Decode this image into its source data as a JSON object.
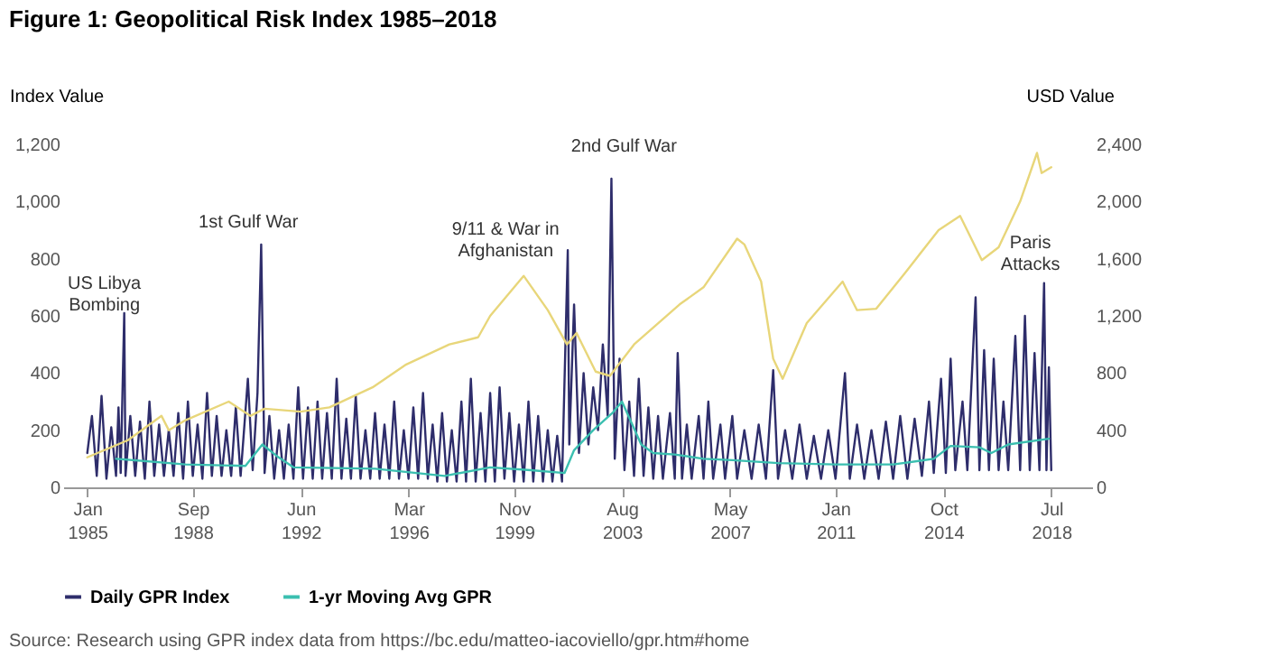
{
  "chart_data": {
    "type": "line",
    "title": "Figure 1: Geopolitical Risk Index 1985–2018",
    "ylabel": "Index Value",
    "y2label": "USD Value",
    "xlim": [
      "1984-03-01",
      "2019-12-01"
    ],
    "xticks": [
      {
        "value": "1985-01-01",
        "label": "Jan 1985"
      },
      {
        "value": "1988-09-01",
        "label": "Sep 1988"
      },
      {
        "value": "1992-06-01",
        "label": "Jun 1992"
      },
      {
        "value": "1996-03-01",
        "label": "Mar 1996"
      },
      {
        "value": "1999-11-01",
        "label": "Nov 1999"
      },
      {
        "value": "2003-08-01",
        "label": "Aug 2003"
      },
      {
        "value": "2007-05-01",
        "label": "May 2007"
      },
      {
        "value": "2011-01-01",
        "label": "Jan 2011"
      },
      {
        "value": "2014-10-01",
        "label": "Oct 2014"
      },
      {
        "value": "2018-07-01",
        "label": "Jul 2018"
      }
    ],
    "ylim": [
      0,
      1200
    ],
    "yticks": [
      0,
      200,
      400,
      600,
      800,
      {
        "value": 1000,
        "label": "1,000"
      },
      {
        "value": 1200,
        "label": "1,200"
      }
    ],
    "y2lim": [
      0,
      2400
    ],
    "y2ticks": [
      0,
      400,
      800,
      {
        "value": 1200,
        "label": "1,200"
      },
      {
        "value": 1600,
        "label": "1,600"
      },
      {
        "value": 2000,
        "label": "2,000"
      },
      {
        "value": 2400,
        "label": "2,400"
      }
    ],
    "grid": false,
    "legend": "bottom left",
    "marker": "none",
    "line_style": "solid",
    "series": [
      {
        "name": "Daily GPR Index",
        "color": "#2e2d6b",
        "x": [
          "1985-01",
          "1985-03",
          "1985-05",
          "1985-07",
          "1985-09",
          "1985-11",
          "1986-01",
          "1986-02",
          "1986-03",
          "1986-04-15",
          "1986-05",
          "1986-07",
          "1986-09",
          "1986-11",
          "1987-01",
          "1987-03",
          "1987-05",
          "1987-07",
          "1987-09",
          "1987-11",
          "1988-01",
          "1988-03",
          "1988-05",
          "1988-07",
          "1988-09",
          "1988-11",
          "1989-01",
          "1989-03",
          "1989-05",
          "1989-07",
          "1989-09",
          "1989-11",
          "1990-01",
          "1990-03",
          "1990-05",
          "1990-08",
          "1990-10",
          "1990-12",
          "1991-01-17",
          "1991-03",
          "1991-05",
          "1991-07",
          "1991-09",
          "1991-11",
          "1992-01",
          "1992-03",
          "1992-05",
          "1992-07",
          "1992-09",
          "1992-11",
          "1993-01",
          "1993-03",
          "1993-05",
          "1993-07",
          "1993-09",
          "1993-11",
          "1994-01",
          "1994-03",
          "1994-05",
          "1994-07",
          "1994-09",
          "1994-11",
          "1995-01",
          "1995-03",
          "1995-05",
          "1995-07",
          "1995-09",
          "1995-11",
          "1996-01",
          "1996-03",
          "1996-05",
          "1996-07",
          "1996-09",
          "1996-11",
          "1997-01",
          "1997-03",
          "1997-05",
          "1997-07",
          "1997-09",
          "1997-11",
          "1998-01",
          "1998-03",
          "1998-05",
          "1998-07",
          "1998-09",
          "1998-11",
          "1999-01",
          "1999-03",
          "1999-05",
          "1999-07",
          "1999-09",
          "1999-11",
          "2000-01",
          "2000-03",
          "2000-05",
          "2000-07",
          "2000-09",
          "2000-11",
          "2001-01",
          "2001-03",
          "2001-05",
          "2001-07",
          "2001-09-12",
          "2001-10",
          "2001-12",
          "2002-02",
          "2002-04",
          "2002-06",
          "2002-08",
          "2002-10",
          "2002-12",
          "2003-02",
          "2003-03-20",
          "2003-05",
          "2003-07",
          "2003-09",
          "2003-11",
          "2004-01",
          "2004-03",
          "2004-05",
          "2004-07",
          "2004-09",
          "2004-11",
          "2005-01",
          "2005-04",
          "2005-06",
          "2005-07-08",
          "2005-09",
          "2005-11",
          "2006-01",
          "2006-04",
          "2006-06",
          "2006-08",
          "2006-10",
          "2007-01",
          "2007-03",
          "2007-06",
          "2007-08",
          "2007-11",
          "2008-02",
          "2008-05",
          "2008-08",
          "2008-11",
          "2009-01",
          "2009-04",
          "2009-07",
          "2009-10",
          "2010-01",
          "2010-04",
          "2010-07",
          "2010-10",
          "2011-01",
          "2011-05",
          "2011-07",
          "2011-10",
          "2012-01",
          "2012-04",
          "2012-07",
          "2012-10",
          "2013-01",
          "2013-04",
          "2013-07",
          "2013-10",
          "2014-01",
          "2014-04",
          "2014-06",
          "2014-09",
          "2014-11",
          "2015-01",
          "2015-03",
          "2015-06",
          "2015-08",
          "2015-11-14",
          "2016-01",
          "2016-03",
          "2016-05",
          "2016-07",
          "2016-09",
          "2016-11",
          "2017-01",
          "2017-04",
          "2017-06",
          "2017-08",
          "2017-10",
          "2017-12",
          "2018-02",
          "2018-04",
          "2018-05",
          "2018-06",
          "2018-07"
        ],
        "values": [
          120,
          250,
          40,
          320,
          30,
          210,
          40,
          280,
          50,
          610,
          40,
          250,
          40,
          230,
          30,
          300,
          40,
          220,
          40,
          200,
          40,
          260,
          30,
          300,
          40,
          220,
          30,
          330,
          40,
          250,
          40,
          200,
          40,
          280,
          40,
          380,
          60,
          330,
          850,
          50,
          250,
          30,
          200,
          30,
          220,
          30,
          350,
          30,
          280,
          30,
          300,
          30,
          260,
          30,
          380,
          30,
          240,
          30,
          320,
          30,
          200,
          30,
          260,
          30,
          220,
          30,
          300,
          30,
          200,
          30,
          280,
          30,
          330,
          30,
          220,
          20,
          260,
          20,
          200,
          20,
          300,
          20,
          380,
          20,
          260,
          20,
          330,
          20,
          350,
          30,
          260,
          20,
          220,
          20,
          300,
          20,
          250,
          20,
          200,
          20,
          180,
          20,
          830,
          150,
          640,
          120,
          400,
          150,
          350,
          200,
          500,
          250,
          1080,
          100,
          450,
          60,
          300,
          40,
          380,
          40,
          280,
          30,
          250,
          30,
          260,
          30,
          470,
          30,
          220,
          30,
          250,
          30,
          300,
          30,
          220,
          30,
          250,
          30,
          200,
          30,
          220,
          30,
          410,
          30,
          200,
          30,
          220,
          30,
          180,
          30,
          200,
          30,
          400,
          30,
          220,
          30,
          200,
          30,
          230,
          30,
          250,
          30,
          240,
          40,
          300,
          50,
          380,
          50,
          450,
          60,
          300,
          60,
          665,
          60,
          480,
          60,
          450,
          60,
          300,
          60,
          530,
          60,
          600,
          60,
          470,
          60,
          715,
          60,
          420,
          60
        ]
      },
      {
        "name": "1-yr Moving Avg GPR",
        "color": "#3bbfb0",
        "x": [
          "1986-01",
          "1988-06",
          "1990-07",
          "1991-02",
          "1991-08",
          "1992-03",
          "1995-01",
          "1997-06",
          "1999-01",
          "2000-06",
          "2001-08",
          "2001-12",
          "2002-08",
          "2003-04",
          "2003-08",
          "2004-04",
          "2004-09",
          "2005-06",
          "2006-06",
          "2007-06",
          "2009-01",
          "2011-01",
          "2013-01",
          "2014-06",
          "2015-01",
          "2016-01",
          "2016-06",
          "2017-01",
          "2018-06"
        ],
        "values": [
          100,
          80,
          75,
          150,
          110,
          70,
          65,
          40,
          70,
          60,
          50,
          130,
          200,
          260,
          300,
          150,
          120,
          115,
          100,
          95,
          85,
          80,
          80,
          100,
          145,
          140,
          120,
          150,
          170
        ]
      },
      {
        "color": "#e8d67a",
        "axis": "y2",
        "x": [
          "1985-01",
          "1986-06",
          "1987-08",
          "1987-11",
          "1988-06",
          "1989-12",
          "1990-09",
          "1991-03",
          "1992-06",
          "1993-06",
          "1994-12",
          "1996-02",
          "1997-08",
          "1998-08",
          "1999-01",
          "2000-03",
          "2001-01",
          "2001-09",
          "2002-01",
          "2002-09",
          "2003-03",
          "2004-01",
          "2005-08",
          "2006-06",
          "2007-08",
          "2007-11",
          "2008-06",
          "2008-11",
          "2009-03",
          "2010-01",
          "2011-04",
          "2011-10",
          "2012-06",
          "2013-06",
          "2014-08",
          "2015-05",
          "2016-02",
          "2016-09",
          "2017-06",
          "2018-01",
          "2018-03",
          "2018-07"
        ],
        "values": [
          210,
          330,
          500,
          400,
          470,
          600,
          500,
          550,
          530,
          560,
          700,
          860,
          1000,
          1050,
          1200,
          1480,
          1240,
          1000,
          1080,
          810,
          780,
          1000,
          1280,
          1400,
          1740,
          1700,
          1440,
          900,
          760,
          1150,
          1440,
          1240,
          1250,
          1500,
          1800,
          1900,
          1590,
          1680,
          2000,
          2340,
          2200,
          2240
        ]
      }
    ],
    "annotations": [
      "US Libya\nBombing",
      "1st Gulf War",
      "9/11 & War in\nAfghanistan",
      "2nd Gulf War",
      "Paris\nAttacks",
      "Source: Research using GPR index data from https://bc.edu/matteo-iacoviello/gpr.htm#home"
    ]
  }
}
